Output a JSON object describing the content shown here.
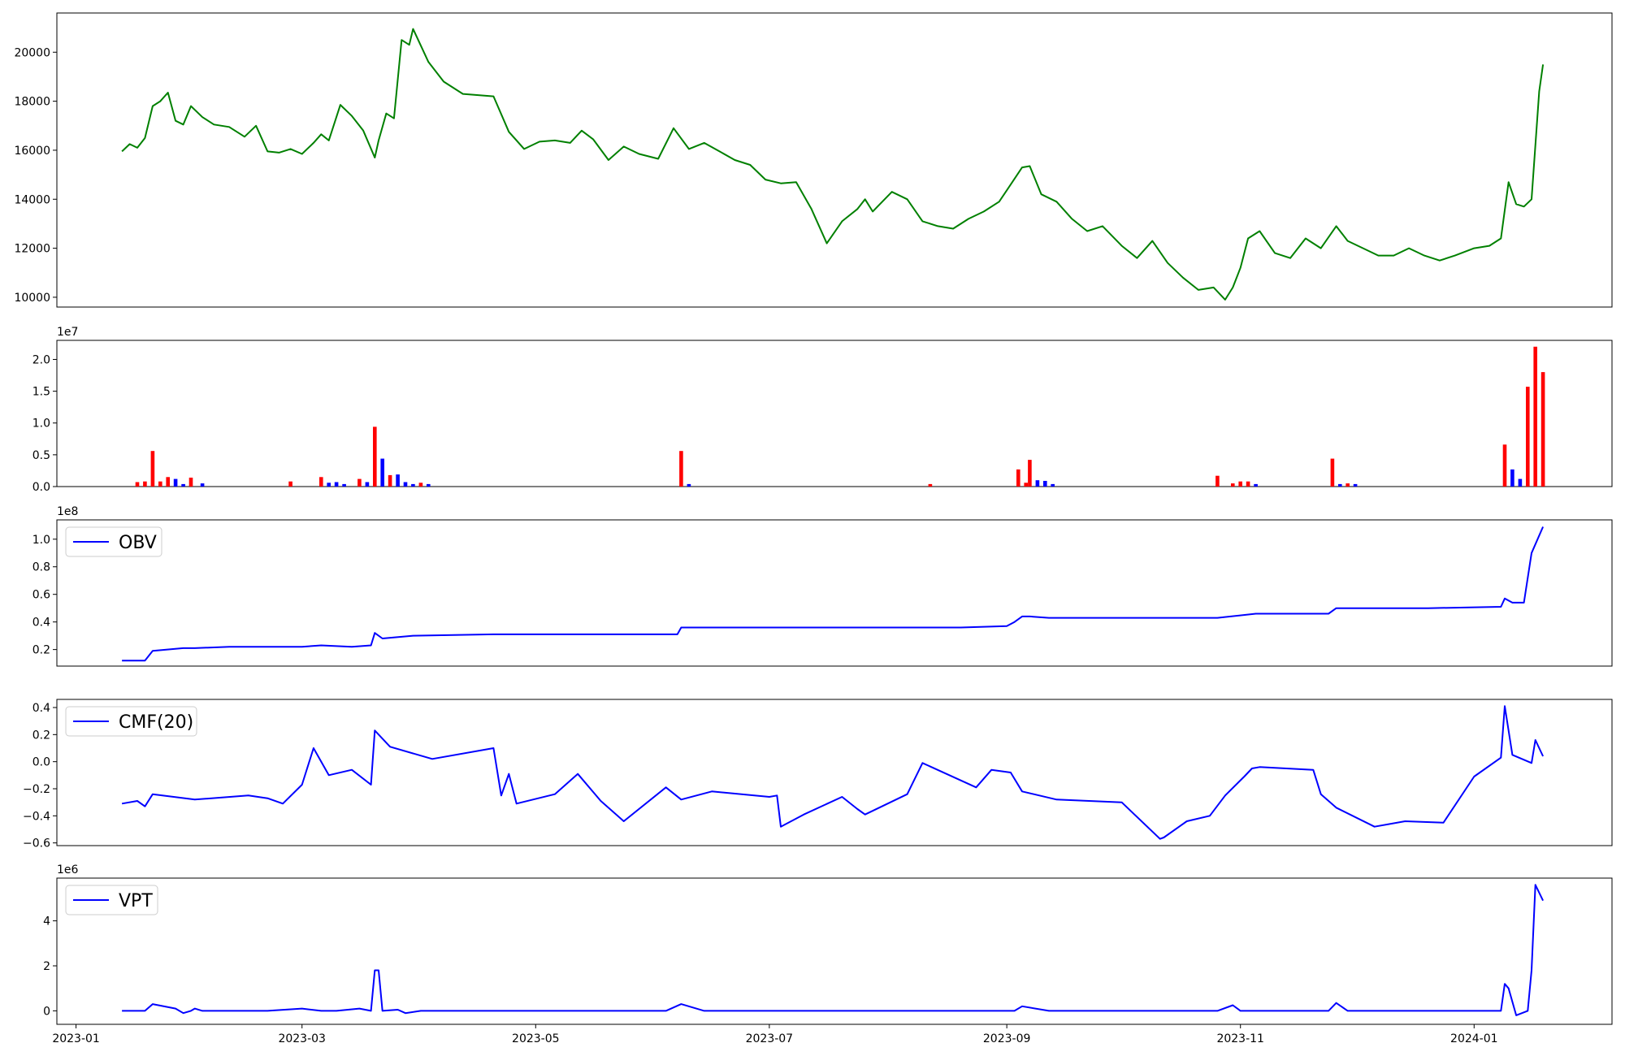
{
  "chart_data": [
    {
      "type": "line",
      "panel": "price",
      "color": "#008000",
      "ylim": [
        9600,
        21600
      ],
      "yticks": [
        10000,
        12000,
        14000,
        16000,
        18000,
        20000
      ],
      "ytick_labels": [
        "10000",
        "12000",
        "14000",
        "16000",
        "18000",
        "20000"
      ],
      "x": [
        "2023-01-13",
        "2023-01-15",
        "2023-01-17",
        "2023-01-19",
        "2023-01-21",
        "2023-01-23",
        "2023-01-25",
        "2023-01-27",
        "2023-01-29",
        "2023-01-31",
        "2023-02-03",
        "2023-02-06",
        "2023-02-10",
        "2023-02-14",
        "2023-02-17",
        "2023-02-20",
        "2023-02-23",
        "2023-02-26",
        "2023-03-01",
        "2023-03-04",
        "2023-03-06",
        "2023-03-08",
        "2023-03-11",
        "2023-03-14",
        "2023-03-17",
        "2023-03-20",
        "2023-03-21",
        "2023-03-23",
        "2023-03-25",
        "2023-03-27",
        "2023-03-29",
        "2023-03-30",
        "2023-04-03",
        "2023-04-07",
        "2023-04-12",
        "2023-04-16",
        "2023-04-20",
        "2023-04-24",
        "2023-04-28",
        "2023-05-02",
        "2023-05-06",
        "2023-05-10",
        "2023-05-13",
        "2023-05-16",
        "2023-05-20",
        "2023-05-24",
        "2023-05-28",
        "2023-06-02",
        "2023-06-06",
        "2023-06-10",
        "2023-06-14",
        "2023-06-18",
        "2023-06-22",
        "2023-06-26",
        "2023-06-30",
        "2023-07-04",
        "2023-07-08",
        "2023-07-12",
        "2023-07-16",
        "2023-07-20",
        "2023-07-24",
        "2023-07-26",
        "2023-07-28",
        "2023-08-02",
        "2023-08-06",
        "2023-08-10",
        "2023-08-14",
        "2023-08-18",
        "2023-08-22",
        "2023-08-26",
        "2023-08-30",
        "2023-09-02",
        "2023-09-05",
        "2023-09-07",
        "2023-09-10",
        "2023-09-14",
        "2023-09-18",
        "2023-09-22",
        "2023-09-26",
        "2023-10-01",
        "2023-10-05",
        "2023-10-09",
        "2023-10-13",
        "2023-10-17",
        "2023-10-21",
        "2023-10-25",
        "2023-10-28",
        "2023-10-30",
        "2023-11-01",
        "2023-11-03",
        "2023-11-06",
        "2023-11-10",
        "2023-11-14",
        "2023-11-18",
        "2023-11-22",
        "2023-11-26",
        "2023-11-29",
        "2023-12-03",
        "2023-12-07",
        "2023-12-11",
        "2023-12-15",
        "2023-12-19",
        "2023-12-23",
        "2023-12-27",
        "2024-01-01",
        "2024-01-05",
        "2024-01-08",
        "2024-01-10",
        "2024-01-12",
        "2024-01-14",
        "2024-01-16",
        "2024-01-18",
        "2024-01-19"
      ],
      "values": [
        15950,
        16250,
        16100,
        16500,
        17800,
        18000,
        18350,
        17200,
        17050,
        17800,
        17350,
        17050,
        16950,
        16550,
        17000,
        15950,
        15900,
        16050,
        15850,
        16300,
        16650,
        16400,
        17850,
        17400,
        16800,
        15700,
        16400,
        17500,
        17300,
        20500,
        20300,
        20950,
        19600,
        18800,
        18300,
        18250,
        18200,
        16750,
        16050,
        16350,
        16400,
        16300,
        16800,
        16450,
        15600,
        16150,
        15850,
        15650,
        16900,
        16050,
        16300,
        15950,
        15600,
        15400,
        14800,
        14650,
        14700,
        13600,
        12200,
        13100,
        13600,
        14000,
        13500,
        14300,
        14000,
        13100,
        12900,
        12800,
        13200,
        13500,
        13900,
        14600,
        15300,
        15350,
        14200,
        13900,
        13200,
        12700,
        12900,
        12100,
        11600,
        12300,
        11400,
        10800,
        10300,
        10400,
        9900,
        10400,
        11200,
        12400,
        12700,
        11800,
        11600,
        12400,
        12000,
        12900,
        12300,
        12000,
        11700,
        11700,
        12000,
        11700,
        11500,
        11700,
        12000,
        12100,
        12400,
        14700,
        13800,
        13700,
        14000,
        18400,
        19500
      ]
    },
    {
      "type": "bar",
      "panel": "volume",
      "multiplier_label": "1e7",
      "ylim": [
        0,
        2.3
      ],
      "yticks": [
        0,
        0.5,
        1.0,
        1.5,
        2.0
      ],
      "ytick_labels": [
        "0.0",
        "0.5",
        "1.0",
        "1.5",
        "2.0"
      ],
      "colors": {
        "up": "#ff0000",
        "down": "#0000ff"
      },
      "bars": [
        {
          "x": "2023-01-17",
          "value": 0.07,
          "dir": "up"
        },
        {
          "x": "2023-01-19",
          "value": 0.08,
          "dir": "up"
        },
        {
          "x": "2023-01-21",
          "value": 0.56,
          "dir": "up"
        },
        {
          "x": "2023-01-23",
          "value": 0.08,
          "dir": "up"
        },
        {
          "x": "2023-01-25",
          "value": 0.15,
          "dir": "up"
        },
        {
          "x": "2023-01-27",
          "value": 0.12,
          "dir": "down"
        },
        {
          "x": "2023-01-29",
          "value": 0.04,
          "dir": "down"
        },
        {
          "x": "2023-01-31",
          "value": 0.14,
          "dir": "up"
        },
        {
          "x": "2023-02-03",
          "value": 0.05,
          "dir": "down"
        },
        {
          "x": "2023-02-26",
          "value": 0.08,
          "dir": "up"
        },
        {
          "x": "2023-03-06",
          "value": 0.15,
          "dir": "up"
        },
        {
          "x": "2023-03-08",
          "value": 0.06,
          "dir": "down"
        },
        {
          "x": "2023-03-10",
          "value": 0.07,
          "dir": "down"
        },
        {
          "x": "2023-03-12",
          "value": 0.04,
          "dir": "down"
        },
        {
          "x": "2023-03-16",
          "value": 0.12,
          "dir": "up"
        },
        {
          "x": "2023-03-18",
          "value": 0.07,
          "dir": "down"
        },
        {
          "x": "2023-03-20",
          "value": 0.94,
          "dir": "up"
        },
        {
          "x": "2023-03-22",
          "value": 0.44,
          "dir": "down"
        },
        {
          "x": "2023-03-24",
          "value": 0.18,
          "dir": "up"
        },
        {
          "x": "2023-03-26",
          "value": 0.19,
          "dir": "down"
        },
        {
          "x": "2023-03-28",
          "value": 0.07,
          "dir": "down"
        },
        {
          "x": "2023-03-30",
          "value": 0.04,
          "dir": "down"
        },
        {
          "x": "2023-04-01",
          "value": 0.06,
          "dir": "up"
        },
        {
          "x": "2023-04-03",
          "value": 0.04,
          "dir": "down"
        },
        {
          "x": "2023-06-08",
          "value": 0.56,
          "dir": "up"
        },
        {
          "x": "2023-06-10",
          "value": 0.04,
          "dir": "down"
        },
        {
          "x": "2023-08-12",
          "value": 0.04,
          "dir": "up"
        },
        {
          "x": "2023-09-04",
          "value": 0.27,
          "dir": "up"
        },
        {
          "x": "2023-09-06",
          "value": 0.06,
          "dir": "up"
        },
        {
          "x": "2023-09-07",
          "value": 0.42,
          "dir": "up"
        },
        {
          "x": "2023-09-09",
          "value": 0.1,
          "dir": "down"
        },
        {
          "x": "2023-09-11",
          "value": 0.09,
          "dir": "down"
        },
        {
          "x": "2023-09-13",
          "value": 0.04,
          "dir": "down"
        },
        {
          "x": "2023-10-26",
          "value": 0.17,
          "dir": "up"
        },
        {
          "x": "2023-10-30",
          "value": 0.05,
          "dir": "up"
        },
        {
          "x": "2023-11-01",
          "value": 0.08,
          "dir": "up"
        },
        {
          "x": "2023-11-03",
          "value": 0.08,
          "dir": "up"
        },
        {
          "x": "2023-11-05",
          "value": 0.04,
          "dir": "down"
        },
        {
          "x": "2023-11-25",
          "value": 0.44,
          "dir": "up"
        },
        {
          "x": "2023-11-27",
          "value": 0.04,
          "dir": "down"
        },
        {
          "x": "2023-11-29",
          "value": 0.05,
          "dir": "up"
        },
        {
          "x": "2023-12-01",
          "value": 0.04,
          "dir": "down"
        },
        {
          "x": "2024-01-09",
          "value": 0.66,
          "dir": "up"
        },
        {
          "x": "2024-01-11",
          "value": 0.27,
          "dir": "down"
        },
        {
          "x": "2024-01-13",
          "value": 0.12,
          "dir": "down"
        },
        {
          "x": "2024-01-15",
          "value": 1.57,
          "dir": "up"
        },
        {
          "x": "2024-01-17",
          "value": 2.2,
          "dir": "up"
        },
        {
          "x": "2024-01-19",
          "value": 1.8,
          "dir": "up"
        }
      ]
    },
    {
      "type": "line",
      "panel": "obv",
      "legend": "OBV",
      "multiplier_label": "1e8",
      "color": "#0000ff",
      "ylim": [
        0.08,
        1.14
      ],
      "yticks": [
        0.2,
        0.4,
        0.6,
        0.8,
        1.0
      ],
      "ytick_labels": [
        "0.2",
        "0.4",
        "0.6",
        "0.8",
        "1.0"
      ],
      "x": [
        "2023-01-13",
        "2023-01-19",
        "2023-01-21",
        "2023-01-29",
        "2023-02-01",
        "2023-02-10",
        "2023-03-01",
        "2023-03-06",
        "2023-03-14",
        "2023-03-19",
        "2023-03-20",
        "2023-03-22",
        "2023-03-30",
        "2023-04-20",
        "2023-06-07",
        "2023-06-08",
        "2023-06-30",
        "2023-08-20",
        "2023-09-01",
        "2023-09-03",
        "2023-09-05",
        "2023-09-07",
        "2023-09-12",
        "2023-10-26",
        "2023-11-05",
        "2023-11-24",
        "2023-11-26",
        "2023-12-20",
        "2024-01-08",
        "2024-01-09",
        "2024-01-11",
        "2024-01-14",
        "2024-01-16",
        "2024-01-19"
      ],
      "values": [
        0.12,
        0.12,
        0.19,
        0.21,
        0.21,
        0.22,
        0.22,
        0.23,
        0.22,
        0.23,
        0.32,
        0.28,
        0.3,
        0.31,
        0.31,
        0.36,
        0.36,
        0.36,
        0.37,
        0.4,
        0.44,
        0.44,
        0.43,
        0.43,
        0.46,
        0.46,
        0.5,
        0.5,
        0.51,
        0.57,
        0.54,
        0.54,
        0.9,
        1.09
      ]
    },
    {
      "type": "line",
      "panel": "cmf",
      "legend": "CMF(20)",
      "color": "#0000ff",
      "ylim": [
        -0.62,
        0.46
      ],
      "yticks": [
        -0.6,
        -0.4,
        -0.2,
        0.0,
        0.2,
        0.4
      ],
      "ytick_labels": [
        "−0.6",
        "−0.4",
        "−0.2",
        "0.0",
        "0.2",
        "0.4"
      ],
      "x": [
        "2023-01-13",
        "2023-01-17",
        "2023-01-19",
        "2023-01-21",
        "2023-02-01",
        "2023-02-15",
        "2023-02-20",
        "2023-02-24",
        "2023-03-01",
        "2023-03-04",
        "2023-03-08",
        "2023-03-14",
        "2023-03-19",
        "2023-03-20",
        "2023-03-24",
        "2023-04-04",
        "2023-04-20",
        "2023-04-22",
        "2023-04-24",
        "2023-04-26",
        "2023-05-06",
        "2023-05-12",
        "2023-05-18",
        "2023-05-24",
        "2023-06-04",
        "2023-06-08",
        "2023-06-16",
        "2023-07-01",
        "2023-07-03",
        "2023-07-04",
        "2023-07-10",
        "2023-07-20",
        "2023-07-24",
        "2023-07-26",
        "2023-08-06",
        "2023-08-10",
        "2023-08-24",
        "2023-08-28",
        "2023-09-02",
        "2023-09-05",
        "2023-09-14",
        "2023-10-01",
        "2023-10-11",
        "2023-10-12",
        "2023-10-18",
        "2023-10-24",
        "2023-10-28",
        "2023-11-02",
        "2023-11-04",
        "2023-11-06",
        "2023-11-20",
        "2023-11-22",
        "2023-11-26",
        "2023-12-06",
        "2023-12-14",
        "2023-12-24",
        "2024-01-01",
        "2024-01-08",
        "2024-01-09",
        "2024-01-11",
        "2024-01-16",
        "2024-01-17",
        "2024-01-19"
      ],
      "values": [
        -0.31,
        -0.29,
        -0.33,
        -0.24,
        -0.28,
        -0.25,
        -0.27,
        -0.31,
        -0.17,
        0.1,
        -0.1,
        -0.06,
        -0.17,
        0.23,
        0.11,
        0.02,
        0.1,
        -0.25,
        -0.09,
        -0.31,
        -0.24,
        -0.09,
        -0.29,
        -0.44,
        -0.19,
        -0.28,
        -0.22,
        -0.26,
        -0.25,
        -0.48,
        -0.39,
        -0.26,
        -0.35,
        -0.39,
        -0.24,
        -0.01,
        -0.19,
        -0.06,
        -0.08,
        -0.22,
        -0.28,
        -0.3,
        -0.57,
        -0.56,
        -0.44,
        -0.4,
        -0.25,
        -0.11,
        -0.05,
        -0.04,
        -0.06,
        -0.24,
        -0.34,
        -0.48,
        -0.44,
        -0.45,
        -0.11,
        0.03,
        0.41,
        0.05,
        -0.01,
        0.16,
        0.04
      ]
    },
    {
      "type": "line",
      "panel": "vpt",
      "legend": "VPT",
      "multiplier_label": "1e6",
      "color": "#0000ff",
      "ylim": [
        -0.6,
        5.9
      ],
      "yticks": [
        0,
        2,
        4
      ],
      "ytick_labels": [
        "0",
        "2",
        "4"
      ],
      "x": [
        "2023-01-13",
        "2023-01-19",
        "2023-01-21",
        "2023-01-27",
        "2023-01-29",
        "2023-01-31",
        "2023-02-01",
        "2023-02-03",
        "2023-02-20",
        "2023-03-01",
        "2023-03-06",
        "2023-03-10",
        "2023-03-16",
        "2023-03-19",
        "2023-03-20",
        "2023-03-21",
        "2023-03-22",
        "2023-03-26",
        "2023-03-28",
        "2023-04-01",
        "2023-06-04",
        "2023-06-08",
        "2023-06-14",
        "2023-08-26",
        "2023-09-03",
        "2023-09-05",
        "2023-09-12",
        "2023-10-26",
        "2023-10-30",
        "2023-11-01",
        "2023-11-06",
        "2023-11-24",
        "2023-11-26",
        "2023-11-29",
        "2024-01-08",
        "2024-01-09",
        "2024-01-10",
        "2024-01-12",
        "2024-01-15",
        "2024-01-16",
        "2024-01-17",
        "2024-01-19"
      ],
      "values": [
        0.0,
        0.0,
        0.3,
        0.1,
        -0.1,
        0.0,
        0.1,
        0.0,
        0.0,
        0.1,
        0.0,
        0.0,
        0.1,
        0.0,
        1.8,
        1.8,
        0.0,
        0.05,
        -0.1,
        0.0,
        0.0,
        0.3,
        0.0,
        0.0,
        0.0,
        0.2,
        0.0,
        0.0,
        0.25,
        0.0,
        0.0,
        0.0,
        0.35,
        0.0,
        0.0,
        1.2,
        1.0,
        -0.2,
        0.0,
        1.8,
        5.6,
        4.9
      ]
    }
  ],
  "x_axis": {
    "xlim": [
      "2022-12-27",
      "2024-02-06"
    ],
    "ticks": [
      "2023-01-01",
      "2023-03-01",
      "2023-05-01",
      "2023-07-01",
      "2023-09-01",
      "2023-11-01",
      "2024-01-01"
    ],
    "tick_labels": [
      "2023-01",
      "2023-03",
      "2023-05",
      "2023-07",
      "2023-09",
      "2023-11",
      "2024-01"
    ]
  }
}
